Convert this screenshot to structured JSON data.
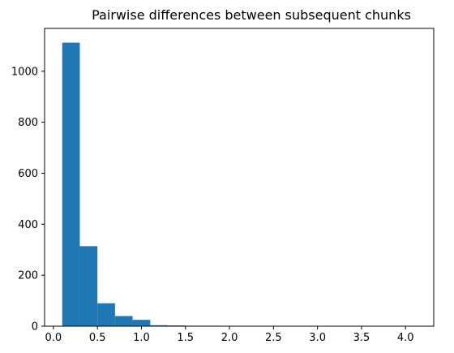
{
  "chart_data": {
    "type": "bar",
    "title": "Pairwise differences between subsequent chunks",
    "xlabel": "",
    "ylabel": "",
    "xlim": [
      -0.1,
      4.32
    ],
    "ylim": [
      0,
      1168
    ],
    "x_ticks": [
      0.0,
      0.5,
      1.0,
      1.5,
      2.0,
      2.5,
      3.0,
      3.5,
      4.0
    ],
    "x_tick_labels": [
      "0.0",
      "0.5",
      "1.0",
      "1.5",
      "2.0",
      "2.5",
      "3.0",
      "3.5",
      "4.0"
    ],
    "y_ticks": [
      0,
      200,
      400,
      600,
      800,
      1000
    ],
    "y_tick_labels": [
      "0",
      "200",
      "400",
      "600",
      "800",
      "1000"
    ],
    "bins": [
      [
        0.1,
        0.3
      ],
      [
        0.3,
        0.5
      ],
      [
        0.5,
        0.7
      ],
      [
        0.7,
        0.9
      ],
      [
        0.9,
        1.1
      ],
      [
        1.1,
        1.3
      ],
      [
        1.3,
        1.5
      ],
      [
        1.5,
        1.7
      ],
      [
        1.7,
        1.9
      ],
      [
        1.9,
        2.1
      ],
      [
        2.1,
        2.3
      ],
      [
        2.3,
        2.5
      ],
      [
        2.5,
        2.7
      ],
      [
        2.7,
        2.9
      ],
      [
        2.9,
        3.1
      ],
      [
        3.1,
        3.3
      ],
      [
        3.3,
        3.5
      ],
      [
        3.5,
        3.7
      ],
      [
        3.7,
        3.9
      ],
      [
        3.9,
        4.11
      ]
    ],
    "values": [
      1112,
      314,
      90,
      40,
      25,
      4,
      3,
      2,
      2,
      1,
      1,
      0,
      0,
      0,
      0,
      0,
      0,
      0,
      0,
      1
    ],
    "grid": false,
    "legend": "none",
    "bar_color": "#1f77b4"
  }
}
